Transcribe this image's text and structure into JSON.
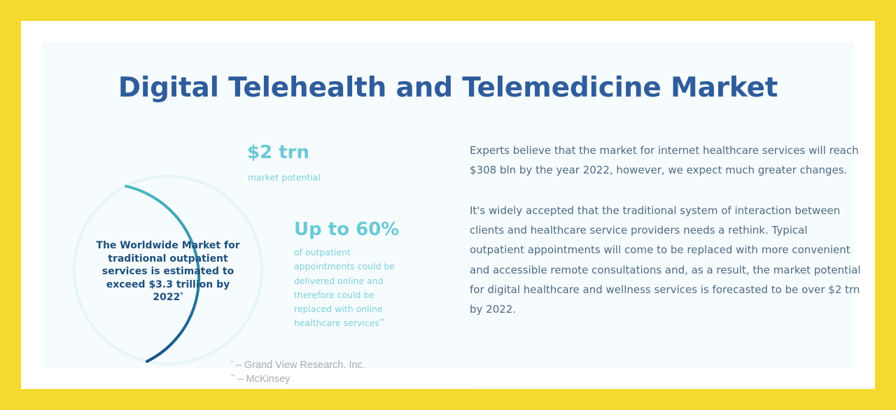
{
  "title": "Digital Telehealth and Telemedicine Market",
  "ring": {
    "text": "The Worldwide Market for traditional outpatient services is estimated to exceed $3.3 trillion by 2022",
    "marker": "*",
    "colors": {
      "start": "#4ab9c3",
      "end": "#124f86",
      "track": "#e6f6f4"
    }
  },
  "stats": [
    {
      "value": "$2 trn",
      "label": "market potential"
    },
    {
      "value": "Up to 60%",
      "label": "of outpatient appointments could be delivered online and therefore could be replaced with online healthcare services",
      "marker": "**"
    }
  ],
  "footnotes": [
    {
      "marker": "*",
      "text": " – Grand View Research. Inc."
    },
    {
      "marker": "**",
      "text": " – McKinsey"
    }
  ],
  "paragraphs": [
    "Experts believe that the market for internet healthcare services will reach $308 bln by the year 2022, however, we expect much greater changes.",
    "It's widely accepted that the traditional system of interaction between clients and healthcare service providers needs a rethink. Typical outpatient appointments will come to be replaced with more convenient and accessible remote consultations and, as a result, the market potential for digital healthcare and wellness services is forecasted to be over $2 trn by 2022."
  ],
  "colors": {
    "background": "#f4d92e",
    "title": "#2f5d9c",
    "accent": "#6cc9d6"
  }
}
